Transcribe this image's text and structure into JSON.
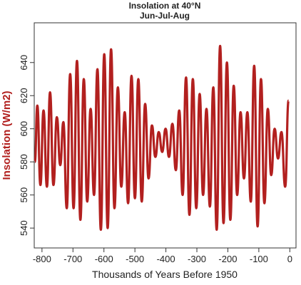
{
  "chart_data": {
    "type": "line",
    "title": "Insolation at 40°N",
    "subtitle": "Jun-Jul-Aug",
    "xlabel": "Thousands of Years Before 1950",
    "ylabel": "Insolation (W/m2)",
    "color": "#b2201f",
    "ylabel_color": "#b2201f",
    "x": [
      -823,
      -815,
      -805,
      -795,
      -784,
      -774,
      -763,
      -752,
      -741,
      -731,
      -720,
      -709,
      -698,
      -687,
      -676,
      -665,
      -654,
      -643,
      -632,
      -621,
      -610,
      -599,
      -588,
      -577,
      -566,
      -555,
      -544,
      -533,
      -522,
      -511,
      -500,
      -489,
      -478,
      -467,
      -456,
      -445,
      -434,
      -423,
      -412,
      -401,
      -390,
      -379,
      -368,
      -357,
      -346,
      -335,
      -324,
      -313,
      -302,
      -291,
      -280,
      -269,
      -258,
      -247,
      -236,
      -225,
      -214,
      -203,
      -192,
      -181,
      -170,
      -159,
      -148,
      -137,
      -126,
      -115,
      -104,
      -93,
      -82,
      -71,
      -60,
      -49,
      -38,
      -27,
      -15,
      -4
    ],
    "values": [
      580,
      614,
      566,
      611,
      565,
      622,
      566,
      607,
      578,
      604,
      552,
      633,
      552,
      641,
      545,
      630,
      556,
      612,
      560,
      636,
      539,
      645,
      540,
      648,
      552,
      625,
      565,
      610,
      555,
      632,
      558,
      630,
      556,
      615,
      570,
      602,
      583,
      598,
      586,
      600,
      583,
      603,
      575,
      611,
      560,
      631,
      548,
      630,
      552,
      621,
      560,
      612,
      553,
      625,
      539,
      650,
      543,
      640,
      545,
      626,
      560,
      610,
      570,
      610,
      556,
      638,
      541,
      630,
      555,
      612,
      572,
      600,
      582,
      598,
      565,
      617
    ],
    "xlim": [
      -825,
      20
    ],
    "ylim": [
      528,
      664
    ],
    "xticks": [
      -800,
      -700,
      -600,
      -500,
      -400,
      -300,
      -200,
      -100,
      0
    ],
    "yticks": [
      540,
      560,
      580,
      600,
      620,
      640
    ]
  }
}
